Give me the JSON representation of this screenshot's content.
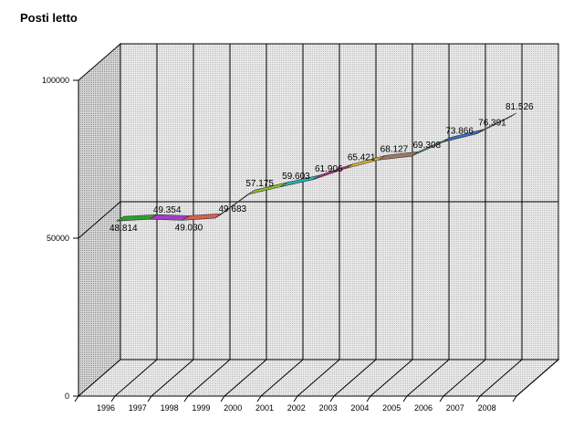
{
  "chart_data": {
    "type": "area",
    "title": "Posti letto",
    "xlabel": "",
    "ylabel": "",
    "categories": [
      "1996",
      "1997",
      "1998",
      "1999",
      "2000",
      "2001",
      "2002",
      "2003",
      "2004",
      "2005",
      "2006",
      "2007",
      "2008"
    ],
    "series": [
      {
        "values": [
          48814,
          49354,
          49030,
          49683,
          57175,
          59603,
          61906,
          65421,
          68127,
          69308,
          73866,
          76391,
          81526
        ]
      }
    ],
    "data_labels": [
      "48.814",
      "49.354",
      "49.030",
      "49.683",
      "57.175",
      "59.603",
      "61.906",
      "65.421",
      "68.127",
      "69.308",
      "73.866",
      "76.391",
      "81.526"
    ],
    "y_ticks": [
      "0",
      "50000",
      "100000"
    ],
    "ylim": [
      0,
      100000
    ],
    "grid": true,
    "legend": "none",
    "ribbon_colors": [
      "#2ca02c",
      "#a43cc6",
      "#d9604c",
      "#3a78b0",
      "#8dbb2a",
      "#2ab3b3",
      "#b82a8c",
      "#d6b23c",
      "#a0786a",
      "#4ba3b0",
      "#3c6cc8",
      "#c09ad8"
    ]
  }
}
